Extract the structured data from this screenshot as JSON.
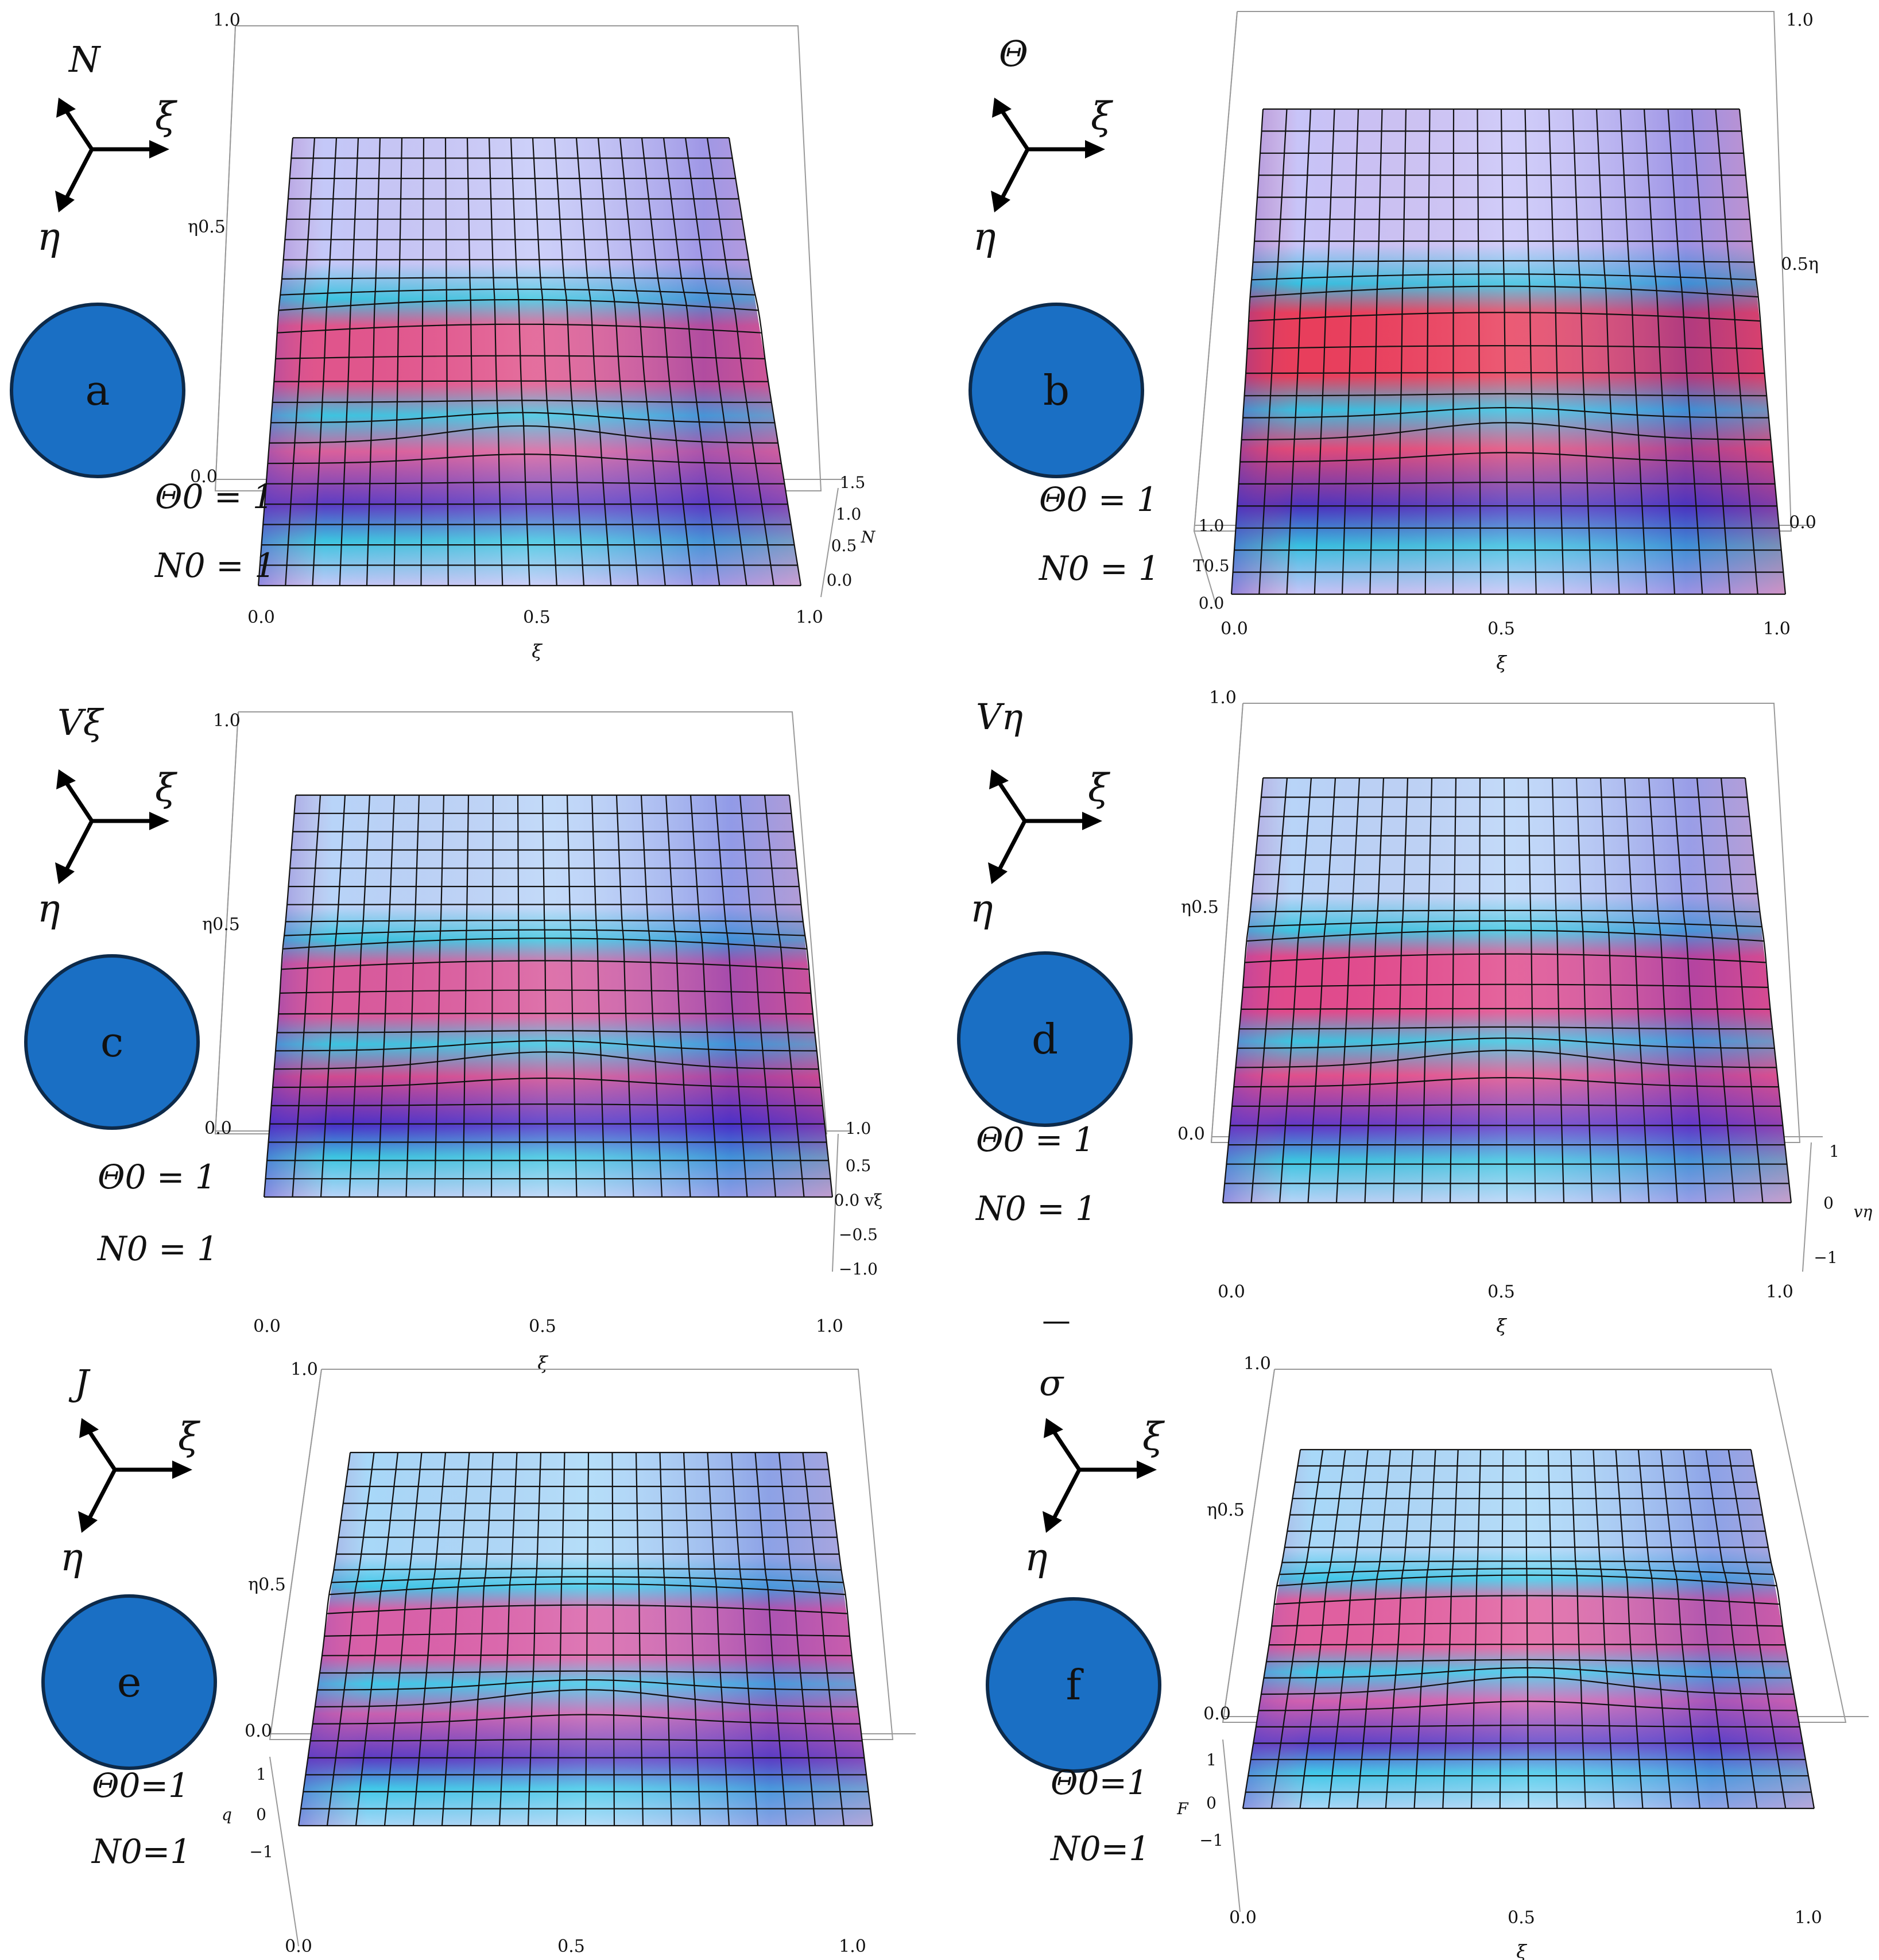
{
  "figure": {
    "panels": [
      {
        "id": "a",
        "badge": "a",
        "var_label": "N",
        "var_label_over": "",
        "axis_xi": "ξ",
        "axis_eta": "η",
        "cond1": "Θ0 = 1",
        "cond2": "N0 = 1",
        "xtick_labels": [
          "0.0",
          "0.5",
          "1.0"
        ],
        "xlabel": "ξ",
        "ytick_labels": [
          "1.0",
          "η0.5",
          "0.0"
        ],
        "ztick_labels": [
          "1.5",
          "1.0",
          "0.5",
          "0.0"
        ],
        "zlabel": "N",
        "colors": {
          "ridge_top": "#e0558c",
          "ridge_bottom": "#d9609c",
          "dark": "#5a3cc4",
          "band": "#3cc4e0",
          "base": "#c4c8f8"
        }
      },
      {
        "id": "b",
        "badge": "b",
        "var_label": "Θ",
        "var_label_over": "",
        "axis_xi": "ξ",
        "axis_eta": "η",
        "cond1": "Θ0 = 1",
        "cond2": "N0 = 1",
        "xtick_labels": [
          "0.0",
          "0.5",
          "1.0"
        ],
        "xlabel": "ξ",
        "ytick_labels": [
          "1.0",
          "0.5η",
          "0.0"
        ],
        "ztick_labels": [
          "1.0",
          "T0.5",
          "0.0"
        ],
        "zlabel": "",
        "colors": {
          "ridge_top": "#e83e5c",
          "ridge_bottom": "#e04a7a",
          "dark": "#4a34c0",
          "band": "#38bfe0",
          "base": "#c8c4f8"
        }
      },
      {
        "id": "c",
        "badge": "c",
        "var_label": "Vξ",
        "var_label_over": "",
        "axis_xi": "ξ",
        "axis_eta": "η",
        "cond1": "Θ0 = 1",
        "cond2": "N0 = 1",
        "xtick_labels": [
          "0.0",
          "0.5",
          "1.0"
        ],
        "xlabel": "ξ",
        "ytick_labels": [
          "1.0",
          "η0.5",
          "0.0"
        ],
        "ztick_labels": [
          "1.0",
          "0.5",
          "0.0 vξ",
          "−0.5",
          "−1.0"
        ],
        "zlabel": "",
        "colors": {
          "ridge_top": "#d85a9c",
          "ridge_bottom": "#d04a90",
          "dark": "#4a30c8",
          "band": "#3cc4e0",
          "base": "#b8d4f8"
        }
      },
      {
        "id": "d",
        "badge": "d",
        "var_label": "Vη",
        "var_label_over": "",
        "axis_xi": "ξ",
        "axis_eta": "η",
        "cond1": "Θ0 = 1",
        "cond2": "N0 = 1",
        "xtick_labels": [
          "0.0",
          "0.5",
          "1.0"
        ],
        "xlabel": "ξ",
        "ytick_labels": [
          "1.0",
          "η0.5",
          "0.0"
        ],
        "ztick_labels": [
          "1",
          "0",
          "−1"
        ],
        "zlabel": "vη",
        "colors": {
          "ridge_top": "#e04a8c",
          "ridge_bottom": "#e0508c",
          "dark": "#6038c8",
          "band": "#3cc4e0",
          "base": "#b8d4f8"
        }
      },
      {
        "id": "e",
        "badge": "e",
        "var_label": "J",
        "var_label_over": "",
        "axis_xi": "ξ",
        "axis_eta": "η",
        "cond1": "Θ0=1",
        "cond2": "N0=1",
        "xtick_labels": [
          "0.0",
          "0.5",
          "1.0"
        ],
        "xlabel": "ξ",
        "ytick_labels": [
          "1.0",
          "η0.5",
          "0.0"
        ],
        "ztick_labels": [
          "1",
          "0",
          "−1"
        ],
        "zlabel": "q",
        "colors": {
          "ridge_top": "#d860a8",
          "ridge_bottom": "#c860b0",
          "dark": "#5a3cc4",
          "band": "#40c8e8",
          "base": "#a8d8f8"
        }
      },
      {
        "id": "f",
        "badge": "f",
        "var_label": "σ",
        "var_label_over": "‾",
        "axis_xi": "ξ",
        "axis_eta": "η",
        "cond1": "Θ0=1",
        "cond2": "N0=1",
        "xtick_labels": [
          "0.0",
          "0.5",
          "1.0"
        ],
        "xlabel": "ξ",
        "ytick_labels": [
          "1.0",
          "η0.5",
          "0.0"
        ],
        "ztick_labels": [
          "1",
          "0",
          "−1"
        ],
        "zlabel": "F",
        "colors": {
          "ridge_top": "#e060a0",
          "ridge_bottom": "#d060b0",
          "dark": "#5a40c8",
          "band": "#40c8e8",
          "base": "#a8d8f8"
        }
      }
    ],
    "colors": {
      "badge_fill": "#1a6fc4",
      "badge_stroke": "#0d2a4a",
      "grid_line": "#111111",
      "box_line": "#999999"
    }
  },
  "chart_data": [
    {
      "type": "surface",
      "panel": "a",
      "xlabel": "ξ",
      "zlabel": "N",
      "x_ticks": [
        0.0,
        0.5,
        1.0
      ],
      "y_ticks": [
        0.0,
        0.5,
        1.0
      ],
      "z_ticks": [
        0.0,
        0.5,
        1.0,
        1.5
      ],
      "zlim": [
        0.0,
        1.5
      ],
      "grid": true
    },
    {
      "type": "surface",
      "panel": "b",
      "xlabel": "ξ",
      "x_ticks": [
        0.0,
        0.5,
        1.0
      ],
      "y_ticks": [
        0.0,
        0.5,
        1.0
      ],
      "z_ticks": [
        0.0,
        0.5,
        1.0
      ],
      "zlim": [
        0.0,
        1.0
      ],
      "grid": true
    },
    {
      "type": "surface",
      "panel": "c",
      "xlabel": "ξ",
      "zlabel": "vξ",
      "x_ticks": [
        0.0,
        0.5,
        1.0
      ],
      "y_ticks": [
        0.0,
        0.5,
        1.0
      ],
      "z_ticks": [
        -1.0,
        -0.5,
        0.0,
        0.5,
        1.0
      ],
      "zlim": [
        -1.0,
        1.0
      ],
      "grid": true
    },
    {
      "type": "surface",
      "panel": "d",
      "xlabel": "ξ",
      "zlabel": "vη",
      "x_ticks": [
        0.0,
        0.5,
        1.0
      ],
      "y_ticks": [
        0.0,
        0.5,
        1.0
      ],
      "z_ticks": [
        -1,
        0,
        1
      ],
      "zlim": [
        -1,
        1
      ],
      "grid": true
    },
    {
      "type": "surface",
      "panel": "e",
      "xlabel": "ξ",
      "zlabel": "q",
      "x_ticks": [
        0.0,
        0.5,
        1.0
      ],
      "y_ticks": [
        0.0,
        0.5,
        1.0
      ],
      "z_ticks": [
        -1,
        0,
        1
      ],
      "zlim": [
        -1,
        1
      ],
      "grid": true
    },
    {
      "type": "surface",
      "panel": "f",
      "xlabel": "ξ",
      "zlabel": "F",
      "x_ticks": [
        0.0,
        0.5,
        1.0
      ],
      "y_ticks": [
        0.0,
        0.5,
        1.0
      ],
      "z_ticks": [
        -1,
        0,
        1
      ],
      "zlim": [
        -1,
        1
      ],
      "grid": true
    }
  ]
}
